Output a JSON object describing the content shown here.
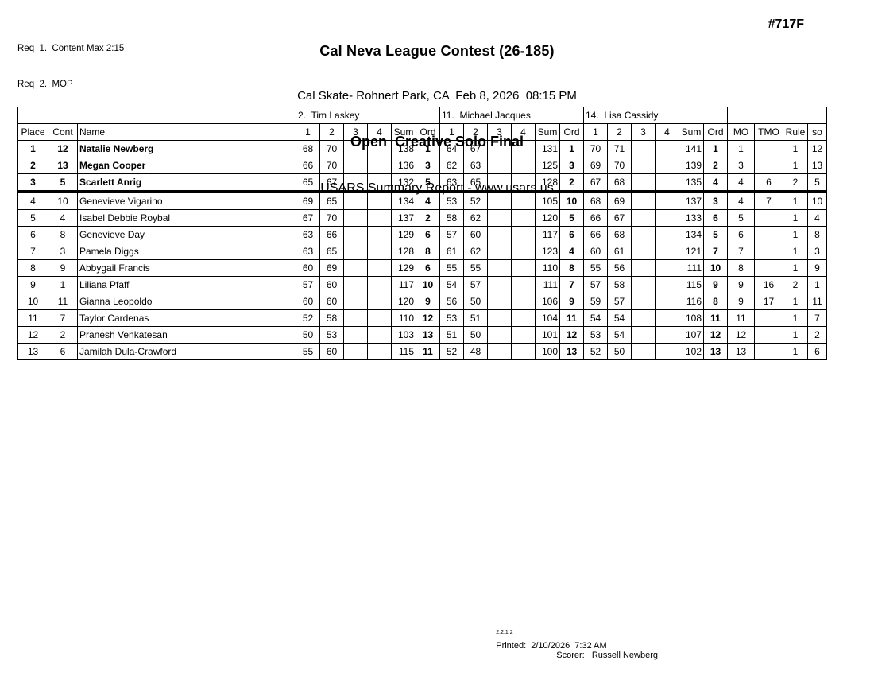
{
  "header": {
    "req1": "Req  1.  Content Max 2:15",
    "req2": "Req  2.  MOP",
    "title": "Cal Neva League Contest (26-185)",
    "subtitle": "Cal Skate- Rohnert Park, CA  Feb 8, 2026  08:15 PM",
    "event": "Open  Creative Solo Final",
    "report": "USARS Summary Report - www.usars.us",
    "number": "#717F"
  },
  "table": {
    "judges": [
      "2.  Tim Laskey",
      "11.  Michael Jacques",
      "14.  Lisa Cassidy"
    ],
    "left_cols": [
      "Place",
      "Cont",
      "Name"
    ],
    "score_cols": [
      "1",
      "2",
      "3",
      "4",
      "Sum",
      "Ord"
    ],
    "right_cols": [
      "MO",
      "TMO",
      "Rule",
      "so"
    ],
    "rows": [
      {
        "place": "1",
        "cont": "12",
        "name": "Natalie Newberg",
        "bold": true,
        "judges": [
          [
            "68",
            "70",
            "",
            "",
            "138",
            "1"
          ],
          [
            "64",
            "67",
            "",
            "",
            "131",
            "1"
          ],
          [
            "70",
            "71",
            "",
            "",
            "141",
            "1"
          ]
        ],
        "mo": "1",
        "tmo": "",
        "rule": "1",
        "so": "12"
      },
      {
        "place": "2",
        "cont": "13",
        "name": "Megan Cooper",
        "bold": true,
        "judges": [
          [
            "66",
            "70",
            "",
            "",
            "136",
            "3"
          ],
          [
            "62",
            "63",
            "",
            "",
            "125",
            "3"
          ],
          [
            "69",
            "70",
            "",
            "",
            "139",
            "2"
          ]
        ],
        "mo": "3",
        "tmo": "",
        "rule": "1",
        "so": "13"
      },
      {
        "place": "3",
        "cont": "5",
        "name": "Scarlett Anrig",
        "bold": true,
        "cut": true,
        "judges": [
          [
            "65",
            "67",
            "",
            "",
            "132",
            "5"
          ],
          [
            "63",
            "65",
            "",
            "",
            "128",
            "2"
          ],
          [
            "67",
            "68",
            "",
            "",
            "135",
            "4"
          ]
        ],
        "mo": "4",
        "tmo": "6",
        "rule": "2",
        "so": "5"
      },
      {
        "place": "4",
        "cont": "10",
        "name": "Genevieve Vigarino",
        "bold": false,
        "judges": [
          [
            "69",
            "65",
            "",
            "",
            "134",
            "4"
          ],
          [
            "53",
            "52",
            "",
            "",
            "105",
            "10"
          ],
          [
            "68",
            "69",
            "",
            "",
            "137",
            "3"
          ]
        ],
        "mo": "4",
        "tmo": "7",
        "rule": "1",
        "so": "10"
      },
      {
        "place": "5",
        "cont": "4",
        "name": "Isabel Debbie Roybal",
        "bold": false,
        "judges": [
          [
            "67",
            "70",
            "",
            "",
            "137",
            "2"
          ],
          [
            "58",
            "62",
            "",
            "",
            "120",
            "5"
          ],
          [
            "66",
            "67",
            "",
            "",
            "133",
            "6"
          ]
        ],
        "mo": "5",
        "tmo": "",
        "rule": "1",
        "so": "4"
      },
      {
        "place": "6",
        "cont": "8",
        "name": "Genevieve Day",
        "bold": false,
        "judges": [
          [
            "63",
            "66",
            "",
            "",
            "129",
            "6"
          ],
          [
            "57",
            "60",
            "",
            "",
            "117",
            "6"
          ],
          [
            "66",
            "68",
            "",
            "",
            "134",
            "5"
          ]
        ],
        "mo": "6",
        "tmo": "",
        "rule": "1",
        "so": "8"
      },
      {
        "place": "7",
        "cont": "3",
        "name": "Pamela Diggs",
        "bold": false,
        "judges": [
          [
            "63",
            "65",
            "",
            "",
            "128",
            "8"
          ],
          [
            "61",
            "62",
            "",
            "",
            "123",
            "4"
          ],
          [
            "60",
            "61",
            "",
            "",
            "121",
            "7"
          ]
        ],
        "mo": "7",
        "tmo": "",
        "rule": "1",
        "so": "3"
      },
      {
        "place": "8",
        "cont": "9",
        "name": "Abbygail Francis",
        "bold": false,
        "judges": [
          [
            "60",
            "69",
            "",
            "",
            "129",
            "6"
          ],
          [
            "55",
            "55",
            "",
            "",
            "110",
            "8"
          ],
          [
            "55",
            "56",
            "",
            "",
            "111",
            "10"
          ]
        ],
        "mo": "8",
        "tmo": "",
        "rule": "1",
        "so": "9"
      },
      {
        "place": "9",
        "cont": "1",
        "name": "Liliana Pfaff",
        "bold": false,
        "judges": [
          [
            "57",
            "60",
            "",
            "",
            "117",
            "10"
          ],
          [
            "54",
            "57",
            "",
            "",
            "111",
            "7"
          ],
          [
            "57",
            "58",
            "",
            "",
            "115",
            "9"
          ]
        ],
        "mo": "9",
        "tmo": "16",
        "rule": "2",
        "so": "1"
      },
      {
        "place": "10",
        "cont": "11",
        "name": "Gianna Leopoldo",
        "bold": false,
        "judges": [
          [
            "60",
            "60",
            "",
            "",
            "120",
            "9"
          ],
          [
            "56",
            "50",
            "",
            "",
            "106",
            "9"
          ],
          [
            "59",
            "57",
            "",
            "",
            "116",
            "8"
          ]
        ],
        "mo": "9",
        "tmo": "17",
        "rule": "1",
        "so": "11"
      },
      {
        "place": "11",
        "cont": "7",
        "name": "Taylor Cardenas",
        "bold": false,
        "judges": [
          [
            "52",
            "58",
            "",
            "",
            "110",
            "12"
          ],
          [
            "53",
            "51",
            "",
            "",
            "104",
            "11"
          ],
          [
            "54",
            "54",
            "",
            "",
            "108",
            "11"
          ]
        ],
        "mo": "11",
        "tmo": "",
        "rule": "1",
        "so": "7"
      },
      {
        "place": "12",
        "cont": "2",
        "name": "Pranesh Venkatesan",
        "bold": false,
        "judges": [
          [
            "50",
            "53",
            "",
            "",
            "103",
            "13"
          ],
          [
            "51",
            "50",
            "",
            "",
            "101",
            "12"
          ],
          [
            "53",
            "54",
            "",
            "",
            "107",
            "12"
          ]
        ],
        "mo": "12",
        "tmo": "",
        "rule": "1",
        "so": "2"
      },
      {
        "place": "13",
        "cont": "6",
        "name": "Jamilah Dula-Crawford",
        "bold": false,
        "judges": [
          [
            "55",
            "60",
            "",
            "",
            "115",
            "11"
          ],
          [
            "52",
            "48",
            "",
            "",
            "100",
            "13"
          ],
          [
            "52",
            "50",
            "",
            "",
            "102",
            "13"
          ]
        ],
        "mo": "13",
        "tmo": "",
        "rule": "1",
        "so": "6"
      }
    ]
  },
  "footer": {
    "version": "2.2.1.2",
    "printed": "Printed:  2/10/2026  7:32 AM",
    "scorer": "Scorer:   Russell Newberg"
  }
}
